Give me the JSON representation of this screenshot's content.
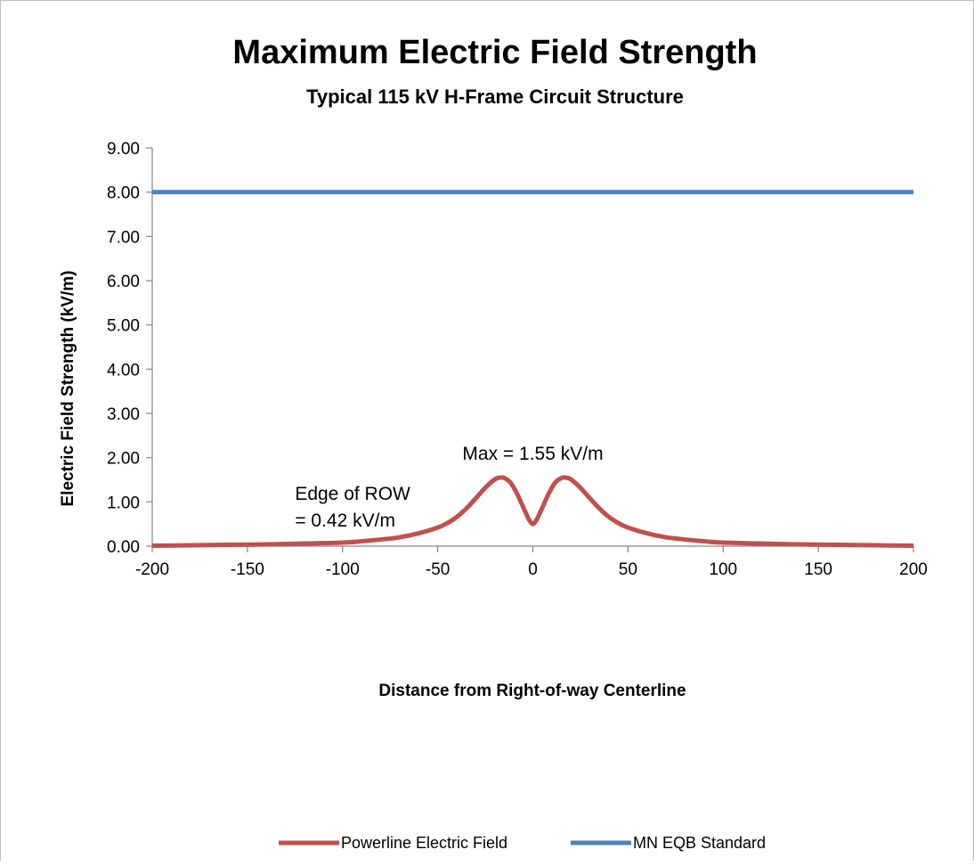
{
  "chart_data": {
    "type": "line",
    "title": "Maximum Electric Field Strength",
    "subtitle": "Typical 115 kV H-Frame Circuit Structure",
    "xlabel": "Distance from Right-of-way Centerline",
    "ylabel": "Electric Field Strength (kV/m)",
    "xlim": [
      -200,
      200
    ],
    "ylim": [
      0,
      9
    ],
    "x_ticks": [
      "-200",
      "-150",
      "-100",
      "-50",
      "0",
      "50",
      "100",
      "150",
      "200"
    ],
    "y_ticks": [
      "0.00",
      "1.00",
      "2.00",
      "3.00",
      "4.00",
      "5.00",
      "6.00",
      "7.00",
      "8.00",
      "9.00"
    ],
    "grid": false,
    "legend_position": "bottom",
    "series": [
      {
        "name": "Powerline Electric Field",
        "color": "#c0504d",
        "x": [
          -200,
          -180,
          -160,
          -140,
          -120,
          -100,
          -90,
          -80,
          -70,
          -60,
          -50,
          -45,
          -40,
          -35,
          -30,
          -25,
          -20,
          -17,
          -15,
          -12,
          -10,
          -8,
          -6,
          -4,
          -2,
          0,
          2,
          4,
          6,
          8,
          10,
          12,
          15,
          17,
          20,
          25,
          30,
          35,
          40,
          45,
          50,
          60,
          70,
          80,
          90,
          100,
          120,
          140,
          160,
          180,
          200
        ],
        "y": [
          0.01,
          0.02,
          0.03,
          0.04,
          0.06,
          0.08,
          0.11,
          0.15,
          0.2,
          0.29,
          0.42,
          0.52,
          0.66,
          0.85,
          1.08,
          1.32,
          1.51,
          1.55,
          1.54,
          1.45,
          1.32,
          1.16,
          0.97,
          0.78,
          0.6,
          0.5,
          0.6,
          0.78,
          0.97,
          1.16,
          1.32,
          1.45,
          1.54,
          1.55,
          1.51,
          1.32,
          1.08,
          0.85,
          0.66,
          0.52,
          0.42,
          0.29,
          0.2,
          0.15,
          0.11,
          0.08,
          0.06,
          0.04,
          0.03,
          0.02,
          0.01
        ]
      },
      {
        "name": "MN EQB Standard",
        "color": "#4f81bd",
        "x": [
          -200,
          200
        ],
        "y": [
          8,
          8
        ]
      }
    ],
    "annotations": [
      {
        "lines": [
          "Max = 1.55 kV/m"
        ],
        "x": 0,
        "y": 1.95,
        "anchor": "middle"
      },
      {
        "lines": [
          "Edge of ROW",
          "= 0.42 kV/m"
        ],
        "x": -125,
        "y": 1.05,
        "anchor": "start"
      }
    ]
  }
}
